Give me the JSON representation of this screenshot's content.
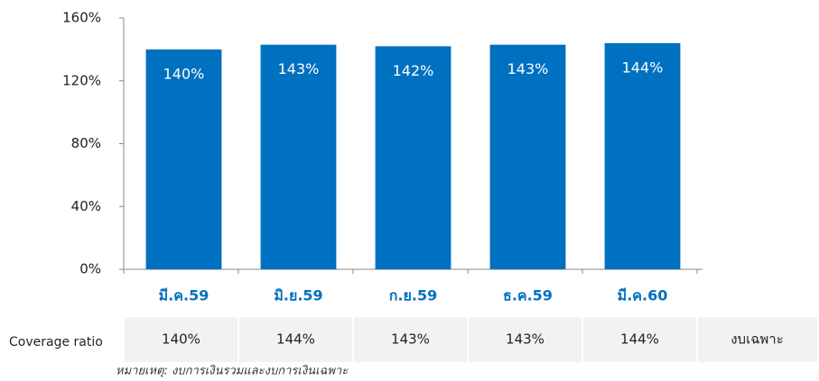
{
  "chart_data": {
    "type": "bar",
    "categories": [
      "มี.ค.59",
      "มิ.ย.59",
      "ก.ย.59",
      "ธ.ค.59",
      "มี.ค.60"
    ],
    "values": [
      140,
      143,
      142,
      143,
      144
    ],
    "value_labels": [
      "140%",
      "143%",
      "142%",
      "143%",
      "144%"
    ],
    "color": "#0070c0",
    "ylim": [
      0,
      160
    ],
    "yticks": [
      {
        "value": 0,
        "label": "0%"
      },
      {
        "value": 40,
        "label": "40%"
      },
      {
        "value": 80,
        "label": "80%"
      },
      {
        "value": 120,
        "label": "120%"
      },
      {
        "value": 160,
        "label": "160%"
      }
    ],
    "grid": false
  },
  "table": {
    "label": "Coverage ratio",
    "cells": [
      "140%",
      "144%",
      "143%",
      "143%",
      "144%"
    ],
    "last_cell": "งบเฉพาะ"
  },
  "note": "หมายเหตุ: งบการเงินรวมและงบการเงินเฉพาะ"
}
